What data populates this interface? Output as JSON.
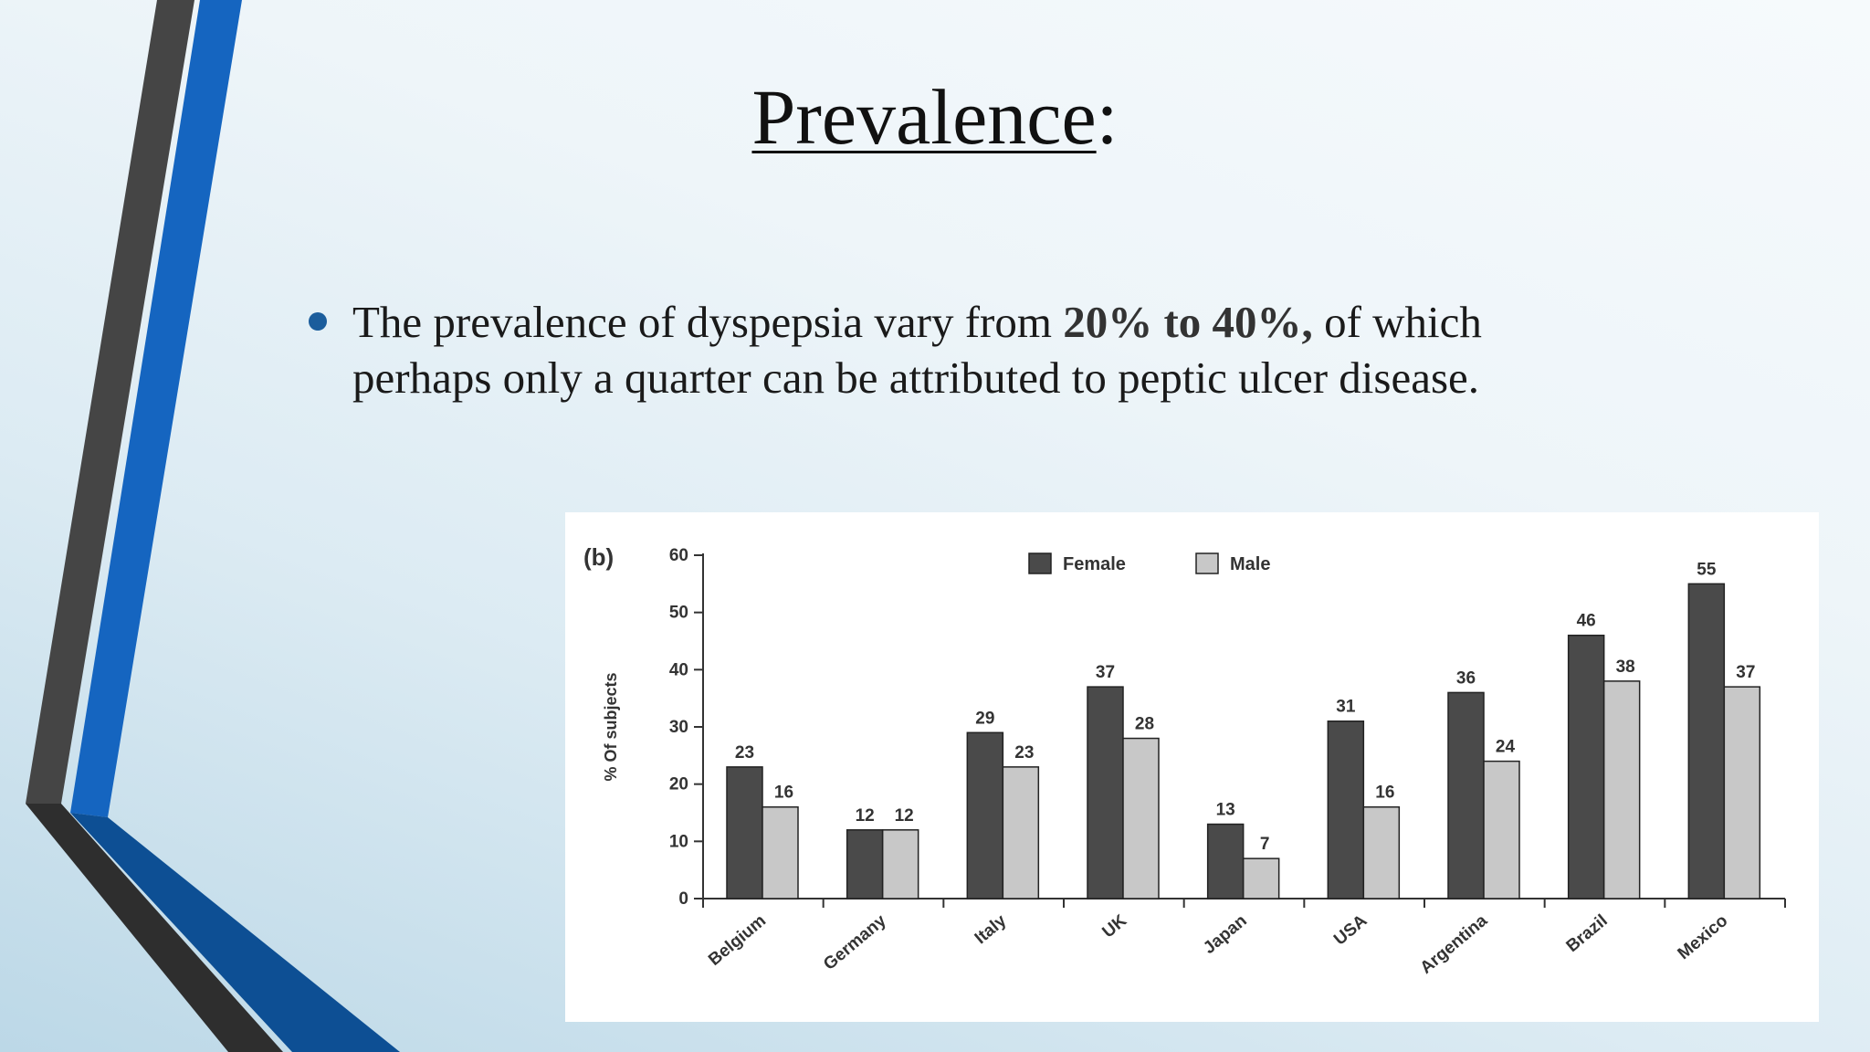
{
  "slide": {
    "title": "Prevalence",
    "title_suffix": ":",
    "bullet": {
      "text_before": "The prevalence of dyspepsia vary from ",
      "text_bold": "20% to 40%,",
      "text_after": " of which perhaps only a quarter can be attributed to peptic ulcer disease."
    }
  },
  "colors": {
    "accent_blue": "#1565c0",
    "deco_dark": "#3c3c3c",
    "female_bar": "#4a4a4a",
    "male_bar": "#c8c8c8"
  },
  "chart_data": {
    "type": "bar",
    "panel_label": "(b)",
    "ylabel": "% Of subjects",
    "xlabel": "",
    "ylim": [
      0,
      60
    ],
    "yticks": [
      0,
      10,
      20,
      30,
      40,
      50,
      60
    ],
    "categories": [
      "Belgium",
      "Germany",
      "Italy",
      "UK",
      "Japan",
      "USA",
      "Argentina",
      "Brazil",
      "Mexico"
    ],
    "series": [
      {
        "name": "Female",
        "values": [
          23,
          12,
          29,
          37,
          13,
          31,
          36,
          46,
          55
        ]
      },
      {
        "name": "Male",
        "values": [
          16,
          12,
          23,
          28,
          7,
          16,
          24,
          38,
          37
        ]
      }
    ],
    "legend_position": "top-center",
    "grid": false
  }
}
